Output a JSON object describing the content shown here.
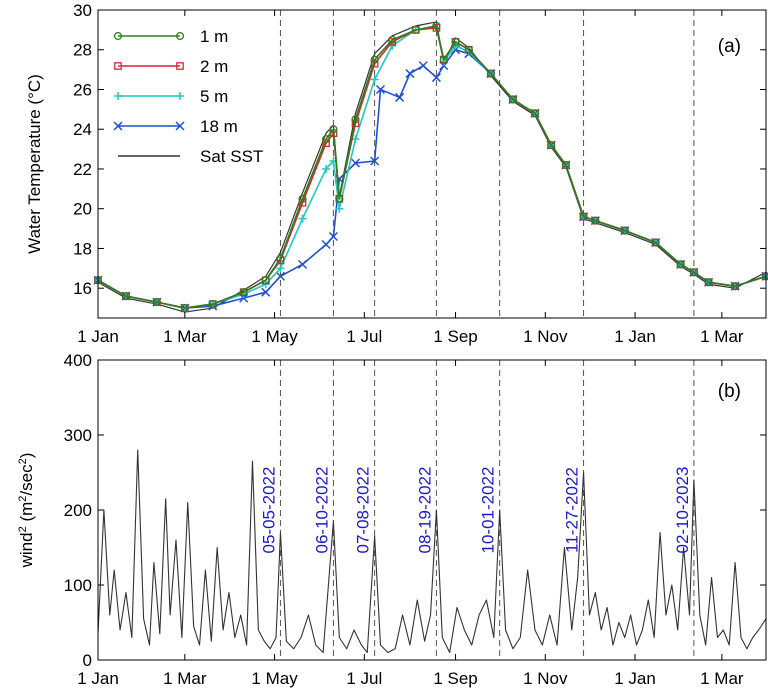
{
  "chart_data": [
    {
      "panel_label": "(a)",
      "type": "line",
      "ylabel": "Water Temperature (°C)",
      "ylim": [
        14.5,
        30
      ],
      "yticks": [
        16,
        18,
        20,
        22,
        24,
        26,
        28,
        30
      ],
      "x_range": [
        "2022-01-01",
        "2023-03-31"
      ],
      "xticks": [
        {
          "date": "2022-01-01",
          "label": "1 Jan"
        },
        {
          "date": "2022-03-01",
          "label": "1 Mar"
        },
        {
          "date": "2022-05-01",
          "label": "1 May"
        },
        {
          "date": "2022-07-01",
          "label": "1 Jul"
        },
        {
          "date": "2022-09-01",
          "label": "1 Sep"
        },
        {
          "date": "2022-11-01",
          "label": "1 Nov"
        },
        {
          "date": "2023-01-01",
          "label": "1 Jan"
        },
        {
          "date": "2023-03-01",
          "label": "1 Mar"
        }
      ],
      "event_dates": [
        "2022-05-05",
        "2022-06-10",
        "2022-07-08",
        "2022-08-19",
        "2022-10-01",
        "2022-11-27",
        "2023-02-10"
      ],
      "legend_position": "top-left",
      "series": [
        {
          "name": "1 m",
          "color": "#2e7d1e",
          "marker": "circle",
          "x": [
            "2022-01-01",
            "2022-01-20",
            "2022-02-10",
            "2022-03-01",
            "2022-03-20",
            "2022-04-10",
            "2022-04-25",
            "2022-05-05",
            "2022-05-20",
            "2022-06-05",
            "2022-06-10",
            "2022-06-14",
            "2022-06-25",
            "2022-07-08",
            "2022-07-20",
            "2022-08-05",
            "2022-08-19",
            "2022-08-24",
            "2022-09-01",
            "2022-09-10",
            "2022-09-25",
            "2022-10-10",
            "2022-10-25",
            "2022-11-05",
            "2022-11-15",
            "2022-11-27",
            "2022-12-05",
            "2022-12-25",
            "2023-01-15",
            "2023-02-01",
            "2023-02-10",
            "2023-02-20",
            "2023-03-10",
            "2023-03-31"
          ],
          "y": [
            16.4,
            15.6,
            15.3,
            15.0,
            15.2,
            15.8,
            16.4,
            17.5,
            20.5,
            23.5,
            24.0,
            20.5,
            24.5,
            27.5,
            28.5,
            29.0,
            29.2,
            27.5,
            28.4,
            28.0,
            26.8,
            25.5,
            24.8,
            23.2,
            22.2,
            19.6,
            19.4,
            18.9,
            18.3,
            17.2,
            16.8,
            16.3,
            16.1,
            16.6
          ]
        },
        {
          "name": "2 m",
          "color": "#d42a2a",
          "marker": "square",
          "x": [
            "2022-01-01",
            "2022-01-20",
            "2022-02-10",
            "2022-03-01",
            "2022-03-20",
            "2022-04-10",
            "2022-04-25",
            "2022-05-05",
            "2022-05-20",
            "2022-06-05",
            "2022-06-10",
            "2022-06-14",
            "2022-06-25",
            "2022-07-08",
            "2022-07-20",
            "2022-08-05",
            "2022-08-19",
            "2022-08-24",
            "2022-09-01",
            "2022-09-10",
            "2022-09-25",
            "2022-10-10",
            "2022-10-25",
            "2022-11-05",
            "2022-11-15",
            "2022-11-27",
            "2022-12-05",
            "2022-12-25",
            "2023-01-15",
            "2023-02-01",
            "2023-02-10",
            "2023-02-20",
            "2023-03-10",
            "2023-03-31"
          ],
          "y": [
            16.4,
            15.6,
            15.3,
            15.0,
            15.2,
            15.8,
            16.4,
            17.4,
            20.3,
            23.3,
            23.8,
            20.5,
            24.3,
            27.3,
            28.4,
            29.0,
            29.1,
            27.5,
            28.4,
            28.0,
            26.8,
            25.5,
            24.8,
            23.2,
            22.2,
            19.6,
            19.4,
            18.9,
            18.3,
            17.2,
            16.8,
            16.3,
            16.1,
            16.6
          ]
        },
        {
          "name": "5 m",
          "color": "#20c8c0",
          "marker": "plus",
          "x": [
            "2022-01-01",
            "2022-01-20",
            "2022-02-10",
            "2022-03-01",
            "2022-03-20",
            "2022-04-10",
            "2022-04-25",
            "2022-05-05",
            "2022-05-20",
            "2022-06-05",
            "2022-06-10",
            "2022-06-14",
            "2022-06-25",
            "2022-07-08",
            "2022-07-20",
            "2022-08-05",
            "2022-08-19",
            "2022-08-24",
            "2022-09-01",
            "2022-09-10",
            "2022-09-25",
            "2022-10-10",
            "2022-10-25",
            "2022-11-05",
            "2022-11-15",
            "2022-11-27",
            "2022-12-05",
            "2022-12-25",
            "2023-01-15",
            "2023-02-01",
            "2023-02-10",
            "2023-02-20",
            "2023-03-10",
            "2023-03-31"
          ],
          "y": [
            16.4,
            15.6,
            15.3,
            15.0,
            15.2,
            15.7,
            16.2,
            17.0,
            19.5,
            22.0,
            22.4,
            20.0,
            23.5,
            26.5,
            28.2,
            29.0,
            29.1,
            27.4,
            28.2,
            27.9,
            26.8,
            25.5,
            24.8,
            23.2,
            22.2,
            19.6,
            19.4,
            18.9,
            18.3,
            17.2,
            16.8,
            16.3,
            16.1,
            16.6
          ]
        },
        {
          "name": "18 m",
          "color": "#1f4fd8",
          "marker": "x",
          "x": [
            "2022-01-01",
            "2022-01-20",
            "2022-02-10",
            "2022-03-01",
            "2022-03-20",
            "2022-04-10",
            "2022-04-25",
            "2022-05-05",
            "2022-05-20",
            "2022-06-05",
            "2022-06-10",
            "2022-06-14",
            "2022-06-25",
            "2022-07-08",
            "2022-07-12",
            "2022-07-25",
            "2022-08-01",
            "2022-08-10",
            "2022-08-19",
            "2022-08-24",
            "2022-09-01",
            "2022-09-10",
            "2022-09-25",
            "2022-10-10",
            "2022-10-25",
            "2022-11-05",
            "2022-11-15",
            "2022-11-27",
            "2022-12-05",
            "2022-12-25",
            "2023-01-15",
            "2023-02-01",
            "2023-02-10",
            "2023-02-20",
            "2023-03-10",
            "2023-03-31"
          ],
          "y": [
            16.4,
            15.6,
            15.3,
            15.0,
            15.1,
            15.5,
            15.8,
            16.6,
            17.2,
            18.2,
            18.6,
            21.5,
            22.3,
            22.4,
            26.0,
            25.6,
            26.8,
            27.2,
            26.6,
            27.2,
            28.0,
            27.8,
            26.8,
            25.5,
            24.8,
            23.2,
            22.2,
            19.6,
            19.4,
            18.9,
            18.3,
            17.2,
            16.8,
            16.3,
            16.1,
            16.6
          ]
        },
        {
          "name": "Sat SST",
          "color": "#333333",
          "marker": "none",
          "x": [
            "2022-01-01",
            "2022-01-20",
            "2022-02-10",
            "2022-03-01",
            "2022-03-20",
            "2022-04-10",
            "2022-04-25",
            "2022-05-05",
            "2022-05-20",
            "2022-06-05",
            "2022-06-10",
            "2022-06-14",
            "2022-06-25",
            "2022-07-08",
            "2022-07-20",
            "2022-08-05",
            "2022-08-19",
            "2022-08-24",
            "2022-09-01",
            "2022-09-10",
            "2022-09-25",
            "2022-10-10",
            "2022-10-25",
            "2022-11-05",
            "2022-11-15",
            "2022-11-27",
            "2022-12-05",
            "2022-12-25",
            "2023-01-15",
            "2023-02-01",
            "2023-02-10",
            "2023-02-20",
            "2023-03-10",
            "2023-03-31"
          ],
          "y": [
            16.3,
            15.5,
            15.2,
            14.8,
            15.0,
            15.9,
            16.6,
            17.8,
            20.8,
            23.8,
            24.2,
            20.6,
            24.8,
            27.8,
            28.7,
            29.2,
            29.4,
            27.3,
            28.6,
            28.1,
            26.7,
            25.4,
            24.7,
            23.1,
            22.1,
            19.5,
            19.3,
            18.8,
            18.2,
            17.1,
            16.7,
            16.2,
            16.0,
            16.8
          ]
        }
      ]
    },
    {
      "panel_label": "(b)",
      "type": "line",
      "ylabel_main": "wind",
      "ylabel_sup1": "2",
      "ylabel_mid": " (m",
      "ylabel_sup2": "2",
      "ylabel_mid2": "/sec",
      "ylabel_sup3": "2",
      "ylabel_end": ")",
      "ylim": [
        0,
        400
      ],
      "yticks": [
        0,
        100,
        200,
        300,
        400
      ],
      "x_range": [
        "2022-01-01",
        "2023-03-31"
      ],
      "xticks": [
        {
          "date": "2022-01-01",
          "label": "1 Jan"
        },
        {
          "date": "2022-03-01",
          "label": "1 Mar"
        },
        {
          "date": "2022-05-01",
          "label": "1 May"
        },
        {
          "date": "2022-07-01",
          "label": "1 Jul"
        },
        {
          "date": "2022-09-01",
          "label": "1 Sep"
        },
        {
          "date": "2022-11-01",
          "label": "1 Nov"
        },
        {
          "date": "2023-01-01",
          "label": "1 Jan"
        },
        {
          "date": "2023-03-01",
          "label": "1 Mar"
        }
      ],
      "event_labels": [
        {
          "date": "2022-05-05",
          "label": "05-05-2022"
        },
        {
          "date": "2022-06-10",
          "label": "06-10-2022"
        },
        {
          "date": "2022-07-08",
          "label": "07-08-2022"
        },
        {
          "date": "2022-08-19",
          "label": "08-19-2022"
        },
        {
          "date": "2022-10-01",
          "label": "10-01-2022"
        },
        {
          "date": "2022-11-27",
          "label": "11-27-2022"
        },
        {
          "date": "2023-02-10",
          "label": "02-10-2023"
        }
      ],
      "event_label_color": "#1a1acc",
      "series": [
        {
          "name": "",
          "color": "#333333",
          "x": [
            "2022-01-01",
            "2022-01-05",
            "2022-01-09",
            "2022-01-12",
            "2022-01-16",
            "2022-01-20",
            "2022-01-24",
            "2022-01-28",
            "2022-02-01",
            "2022-02-05",
            "2022-02-08",
            "2022-02-12",
            "2022-02-16",
            "2022-02-19",
            "2022-02-23",
            "2022-02-27",
            "2022-03-03",
            "2022-03-07",
            "2022-03-11",
            "2022-03-15",
            "2022-03-19",
            "2022-03-23",
            "2022-03-27",
            "2022-03-31",
            "2022-04-04",
            "2022-04-08",
            "2022-04-12",
            "2022-04-16",
            "2022-04-20",
            "2022-04-24",
            "2022-04-28",
            "2022-05-02",
            "2022-05-05",
            "2022-05-09",
            "2022-05-14",
            "2022-05-19",
            "2022-05-24",
            "2022-05-29",
            "2022-06-03",
            "2022-06-10",
            "2022-06-14",
            "2022-06-19",
            "2022-06-24",
            "2022-06-29",
            "2022-07-03",
            "2022-07-08",
            "2022-07-12",
            "2022-07-17",
            "2022-07-22",
            "2022-07-27",
            "2022-08-01",
            "2022-08-06",
            "2022-08-11",
            "2022-08-15",
            "2022-08-19",
            "2022-08-23",
            "2022-08-28",
            "2022-09-02",
            "2022-09-07",
            "2022-09-12",
            "2022-09-17",
            "2022-09-22",
            "2022-09-27",
            "2022-10-01",
            "2022-10-05",
            "2022-10-10",
            "2022-10-15",
            "2022-10-20",
            "2022-10-25",
            "2022-10-30",
            "2022-11-04",
            "2022-11-09",
            "2022-11-14",
            "2022-11-19",
            "2022-11-23",
            "2022-11-27",
            "2022-12-01",
            "2022-12-05",
            "2022-12-09",
            "2022-12-13",
            "2022-12-17",
            "2022-12-21",
            "2022-12-25",
            "2022-12-29",
            "2023-01-02",
            "2023-01-06",
            "2023-01-10",
            "2023-01-14",
            "2023-01-18",
            "2023-01-22",
            "2023-01-26",
            "2023-01-30",
            "2023-02-03",
            "2023-02-07",
            "2023-02-10",
            "2023-02-14",
            "2023-02-18",
            "2023-02-22",
            "2023-02-26",
            "2023-03-02",
            "2023-03-06",
            "2023-03-10",
            "2023-03-14",
            "2023-03-18",
            "2023-03-22",
            "2023-03-26",
            "2023-03-31"
          ],
          "y": [
            35,
            200,
            60,
            120,
            40,
            90,
            30,
            280,
            55,
            20,
            130,
            35,
            215,
            60,
            160,
            30,
            210,
            45,
            20,
            120,
            25,
            150,
            40,
            90,
            30,
            60,
            20,
            265,
            40,
            25,
            15,
            30,
            170,
            25,
            15,
            30,
            60,
            20,
            10,
            185,
            30,
            15,
            40,
            20,
            10,
            165,
            20,
            10,
            15,
            60,
            20,
            80,
            25,
            60,
            200,
            30,
            10,
            70,
            40,
            20,
            60,
            80,
            30,
            200,
            40,
            15,
            30,
            120,
            40,
            20,
            60,
            20,
            150,
            40,
            110,
            250,
            60,
            90,
            40,
            70,
            20,
            50,
            30,
            60,
            20,
            40,
            80,
            30,
            170,
            60,
            100,
            40,
            150,
            60,
            240,
            60,
            20,
            110,
            30,
            40,
            20,
            130,
            30,
            15,
            30,
            40,
            55
          ]
        }
      ]
    }
  ]
}
